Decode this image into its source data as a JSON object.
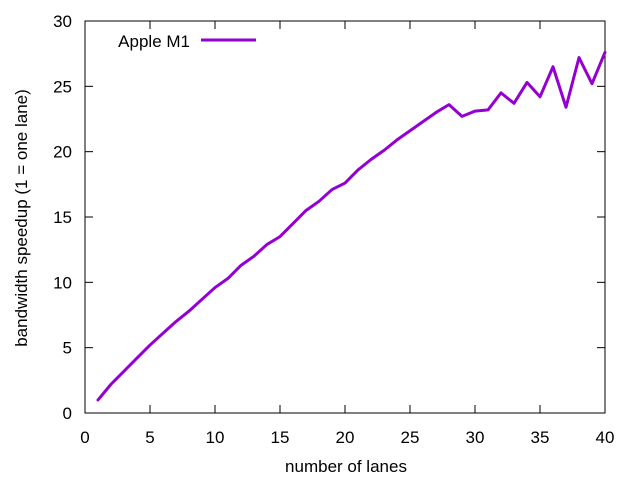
{
  "chart_data": {
    "type": "line",
    "title": "",
    "xlabel": "number of lanes",
    "ylabel": "bandwidth speedup (1 = one lane)",
    "xlim": [
      0,
      40
    ],
    "ylim": [
      0,
      30
    ],
    "xticks": [
      0,
      5,
      10,
      15,
      20,
      25,
      30,
      35,
      40
    ],
    "yticks": [
      0,
      5,
      10,
      15,
      20,
      25,
      30
    ],
    "grid": false,
    "legend_position": "top-left",
    "series": [
      {
        "name": "Apple M1",
        "color": "#9400d3",
        "x": [
          1,
          2,
          3,
          4,
          5,
          6,
          7,
          8,
          9,
          10,
          11,
          12,
          13,
          14,
          15,
          16,
          17,
          18,
          19,
          20,
          21,
          22,
          23,
          24,
          25,
          26,
          27,
          28,
          29,
          30,
          31,
          32,
          33,
          34,
          35,
          36,
          37,
          38,
          39,
          40
        ],
        "y": [
          1.0,
          2.2,
          3.2,
          4.2,
          5.2,
          6.1,
          7.0,
          7.8,
          8.7,
          9.6,
          10.3,
          11.3,
          12.0,
          12.9,
          13.5,
          14.5,
          15.5,
          16.2,
          17.1,
          17.6,
          18.6,
          19.4,
          20.1,
          20.9,
          21.6,
          22.3,
          23.0,
          23.6,
          22.7,
          23.1,
          23.2,
          24.5,
          23.7,
          25.3,
          24.2,
          26.5,
          23.4,
          27.2,
          25.2,
          27.6
        ]
      }
    ]
  }
}
